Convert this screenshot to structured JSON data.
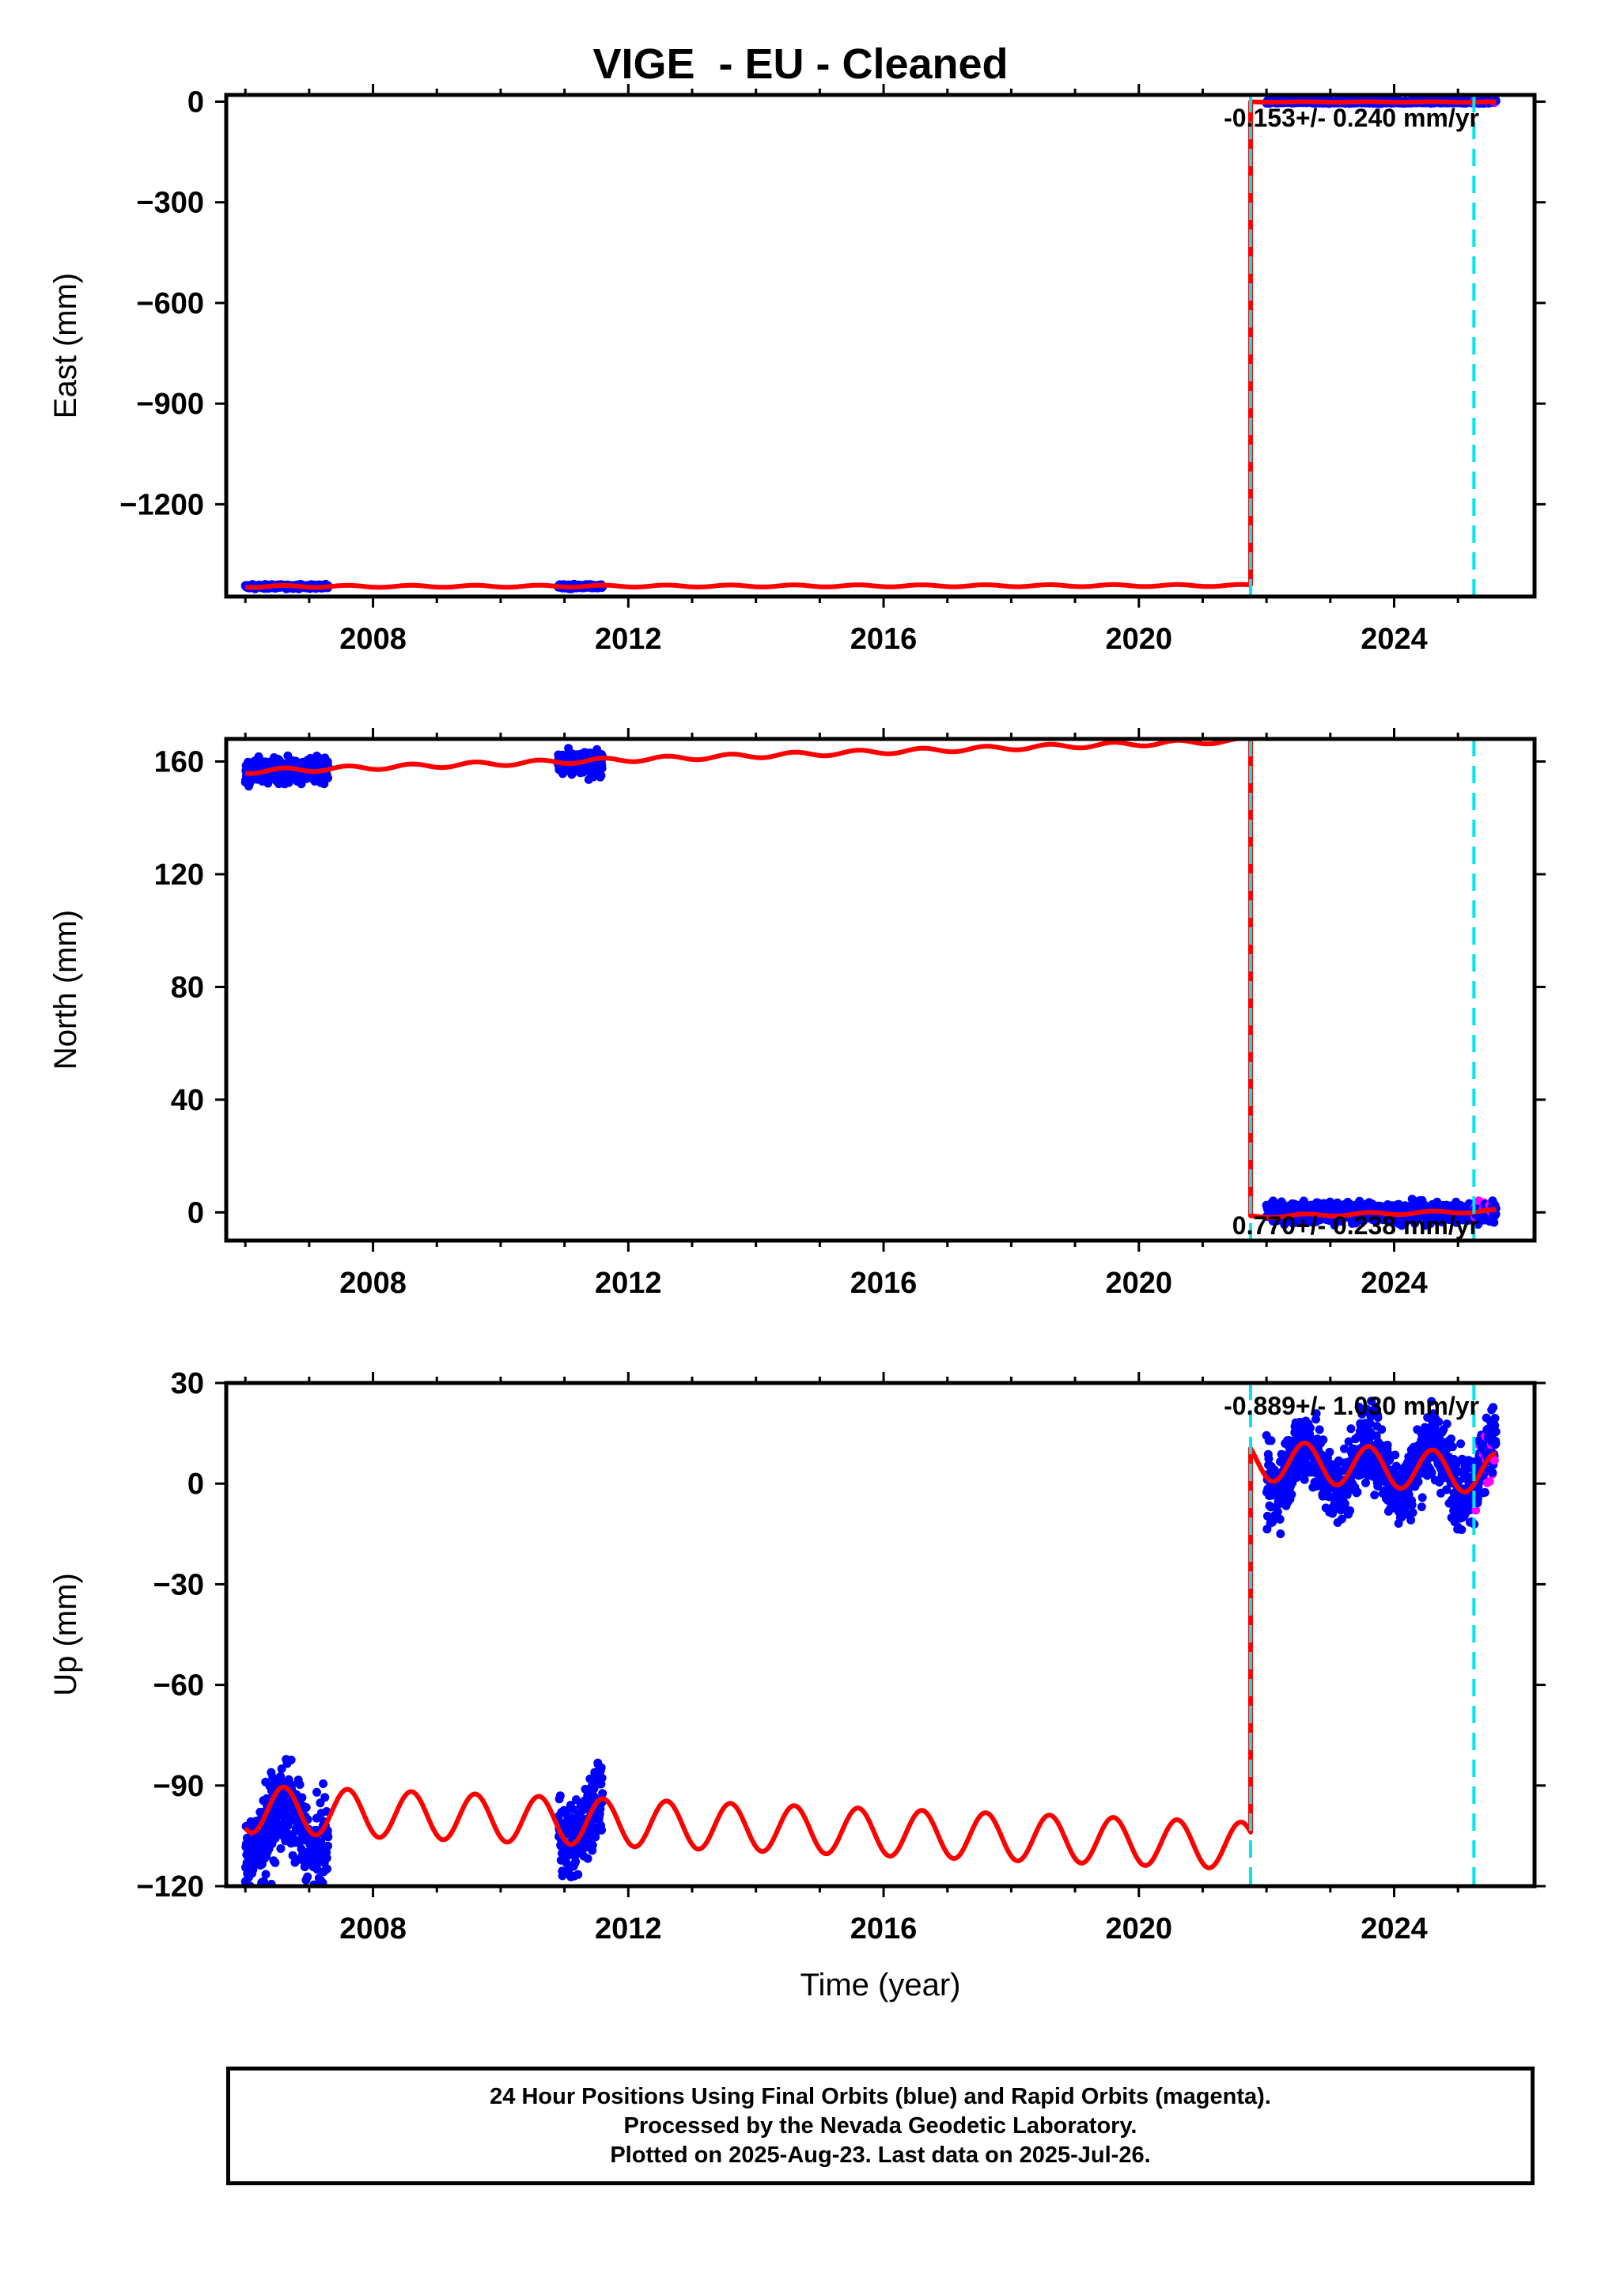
{
  "title": "VIGE  - EU - Cleaned",
  "footer": {
    "line1": "24 Hour Positions Using Final Orbits (blue) and Rapid Orbits (magenta).",
    "line2": "Processed by the Nevada Geodetic Laboratory.",
    "line3": "Plotted on 2025-Aug-23. Last data on 2025-Jul-26."
  },
  "colors": {
    "final_orbit_points": "#0000ff",
    "rapid_orbit_points": "#ff00ff",
    "model_line": "#ff0000",
    "event_line": "#00e5ee"
  },
  "chart_data": [
    {
      "type": "scatter",
      "panel": "east",
      "xlabel": "",
      "ylabel": "East (mm)",
      "xlim": [
        2005.7,
        2026.2
      ],
      "ylim": [
        -1475,
        20
      ],
      "xticks": [
        2008,
        2012,
        2016,
        2020,
        2024
      ],
      "yticks": [
        0,
        -300,
        -600,
        -900,
        -1200
      ],
      "event_lines": [
        2021.75,
        2025.25
      ],
      "step_epoch": 2021.75,
      "annotation": "-0.153+/- 0.240 mm/yr",
      "data_segments": [
        {
          "x_start": 2006.0,
          "x_end": 2007.3,
          "y_mean": -1445,
          "spread": 4
        },
        {
          "x_start": 2010.9,
          "x_end": 2011.6,
          "y_mean": -1445,
          "spread": 4
        },
        {
          "x_start": 2022.0,
          "x_end": 2025.6,
          "y_mean": -1,
          "spread": 3
        }
      ],
      "model_line": [
        {
          "x_start": 2006.0,
          "x_end": 2021.75,
          "y_start": -1445,
          "y_end": -1442,
          "amp": 3
        },
        {
          "x_start": 2021.75,
          "x_end": 2025.6,
          "y_start": -1,
          "y_end": -1,
          "amp": 1
        }
      ]
    },
    {
      "type": "scatter",
      "panel": "north",
      "xlabel": "",
      "ylabel": "North (mm)",
      "xlim": [
        2005.7,
        2026.2
      ],
      "ylim": [
        -10,
        168
      ],
      "xticks": [
        2008,
        2012,
        2016,
        2020,
        2024
      ],
      "yticks": [
        0,
        40,
        80,
        120,
        160
      ],
      "event_lines": [
        2021.75,
        2025.25
      ],
      "step_epoch": 2021.75,
      "annotation": "0.770+/- 0.238 mm/yr",
      "data_segments": [
        {
          "x_start": 2006.0,
          "x_end": 2007.3,
          "y_mean": 157,
          "spread": 3
        },
        {
          "x_start": 2010.9,
          "x_end": 2011.6,
          "y_mean": 159,
          "spread": 3
        },
        {
          "x_start": 2022.0,
          "x_end": 2025.6,
          "y_mean": 0,
          "spread": 2.5
        }
      ],
      "model_line": [
        {
          "x_start": 2006.0,
          "x_end": 2021.75,
          "y_start": 156.5,
          "y_end": 167.5,
          "amp": 0.8
        },
        {
          "x_start": 2021.75,
          "x_end": 2025.6,
          "y_start": -1.5,
          "y_end": 0.5,
          "amp": 0.5
        }
      ]
    },
    {
      "type": "scatter",
      "panel": "up",
      "xlabel": "Time (year)",
      "ylabel": "Up (mm)",
      "xlim": [
        2005.7,
        2026.2
      ],
      "ylim": [
        -120,
        30
      ],
      "xticks": [
        2008,
        2012,
        2016,
        2020,
        2024
      ],
      "yticks": [
        30,
        0,
        -30,
        -60,
        -90,
        -120
      ],
      "event_lines": [
        2021.75,
        2025.25
      ],
      "step_epoch": 2021.75,
      "annotation": "-0.889+/- 1.030 mm/yr",
      "data_segments": [
        {
          "x_start": 2006.0,
          "x_end": 2007.3,
          "y_mean": -103,
          "spread": 9
        },
        {
          "x_start": 2010.9,
          "x_end": 2011.6,
          "y_mean": -100,
          "spread": 8
        },
        {
          "x_start": 2022.0,
          "x_end": 2025.6,
          "y_mean": 5,
          "spread": 8
        }
      ],
      "model_line": [
        {
          "x_start": 2006.0,
          "x_end": 2021.75,
          "y_start": -97,
          "y_end": -108,
          "amp": 7
        },
        {
          "x_start": 2021.75,
          "x_end": 2025.6,
          "y_start": 7,
          "y_end": 3,
          "amp": 6
        }
      ]
    }
  ]
}
